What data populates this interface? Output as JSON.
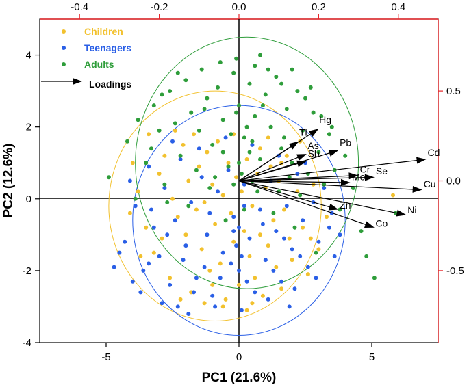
{
  "chart_data": {
    "type": "scatter",
    "title": "",
    "xlabel": "PC1 (21.6%)",
    "ylabel": "PC2 (12.6%)",
    "xlim": [
      -7.5,
      7.5
    ],
    "ylim": [
      -4,
      5
    ],
    "xticks": [
      -5,
      0,
      5
    ],
    "yticks": [
      -4,
      -2,
      0,
      2,
      4
    ],
    "x2lim": [
      -0.5,
      0.5
    ],
    "y2lim": [
      -0.9,
      0.9
    ],
    "x2ticks": [
      "-0.4",
      "-0.2",
      "0.0",
      "0.2",
      "0.4"
    ],
    "y2ticks": [
      "0.5",
      "0.0",
      "-0.5"
    ],
    "legend_position": "top-left",
    "series": [
      {
        "name": "Children",
        "color": "#f2c12e",
        "ellipse": {
          "cx": -0.9,
          "cy": -0.2,
          "rx": 4.0,
          "ry": 3.2
        },
        "points": [
          [
            -3.8,
            0.2
          ],
          [
            -3.5,
            -0.8
          ],
          [
            -3.2,
            -1.5
          ],
          [
            -3.0,
            0.7
          ],
          [
            -2.8,
            1.2
          ],
          [
            -2.6,
            -2.2
          ],
          [
            -2.5,
            0.0
          ],
          [
            -2.3,
            -0.5
          ],
          [
            -2.1,
            1.5
          ],
          [
            -2.0,
            -1.0
          ],
          [
            -1.9,
            0.5
          ],
          [
            -1.8,
            -2.6
          ],
          [
            -1.7,
            1.8
          ],
          [
            -1.6,
            -0.3
          ],
          [
            -1.5,
            0.9
          ],
          [
            -1.4,
            -1.4
          ],
          [
            -1.3,
            -0.1
          ],
          [
            -1.2,
            1.3
          ],
          [
            -1.1,
            -2.0
          ],
          [
            -1.0,
            0.4
          ],
          [
            -0.9,
            -0.7
          ],
          [
            -0.8,
            1.6
          ],
          [
            -0.7,
            -1.8
          ],
          [
            -0.6,
            0.1
          ],
          [
            -0.5,
            -2.8
          ],
          [
            -0.4,
            1.0
          ],
          [
            -0.3,
            -0.4
          ],
          [
            -0.2,
            -1.2
          ],
          [
            -0.1,
            0.6
          ],
          [
            0.0,
            -2.4
          ],
          [
            0.1,
            0.2
          ],
          [
            0.2,
            -0.9
          ],
          [
            0.3,
            1.1
          ],
          [
            0.4,
            -1.6
          ],
          [
            0.5,
            -0.2
          ],
          [
            0.6,
            -2.2
          ],
          [
            0.7,
            0.7
          ],
          [
            0.8,
            -1.0
          ],
          [
            0.9,
            -2.7
          ],
          [
            1.0,
            0.3
          ],
          [
            1.1,
            -1.3
          ],
          [
            1.2,
            0.9
          ],
          [
            1.3,
            -0.6
          ],
          [
            1.4,
            -1.9
          ],
          [
            1.5,
            0.5
          ],
          [
            1.6,
            -2.5
          ],
          [
            1.7,
            -0.3
          ],
          [
            1.8,
            1.2
          ],
          [
            1.9,
            -1.1
          ],
          [
            2.0,
            -1.7
          ],
          [
            2.2,
            0.2
          ],
          [
            2.4,
            -0.8
          ],
          [
            2.6,
            -2.1
          ],
          [
            2.8,
            0.4
          ],
          [
            3.0,
            -1.4
          ],
          [
            3.3,
            -0.5
          ],
          [
            -0.6,
            -3.0
          ],
          [
            -2.4,
            1.9
          ],
          [
            -1.3,
            -2.9
          ],
          [
            0.3,
            -3.1
          ],
          [
            1.1,
            1.7
          ],
          [
            -3.4,
            1.8
          ],
          [
            -4.1,
            -0.4
          ],
          [
            5.8,
            0.1
          ],
          [
            2.3,
            1.6
          ],
          [
            -2.9,
            -1.1
          ],
          [
            -1.0,
            -2.4
          ],
          [
            0.8,
            1.4
          ],
          [
            1.6,
            1.0
          ],
          [
            -0.2,
            1.8
          ],
          [
            2.7,
            -1.1
          ],
          [
            -3.7,
            -1.6
          ],
          [
            -4.0,
            1.0
          ],
          [
            -2.2,
            -2.8
          ],
          [
            0.5,
            -2.9
          ]
        ]
      },
      {
        "name": "Teenagers",
        "color": "#2a5fe6",
        "ellipse": {
          "cx": 0.0,
          "cy": -0.6,
          "rx": 4.0,
          "ry": 3.2
        },
        "points": [
          [
            -4.3,
            -1.2
          ],
          [
            -4.1,
            0.5
          ],
          [
            -3.9,
            -0.2
          ],
          [
            -3.6,
            -2.0
          ],
          [
            -3.4,
            0.9
          ],
          [
            -3.2,
            -0.8
          ],
          [
            -3.0,
            -1.6
          ],
          [
            -2.8,
            0.3
          ],
          [
            -2.6,
            -2.4
          ],
          [
            -2.4,
            -0.6
          ],
          [
            -2.2,
            1.1
          ],
          [
            -2.0,
            -1.3
          ],
          [
            -1.8,
            -0.1
          ],
          [
            -1.6,
            -2.2
          ],
          [
            -1.4,
            0.6
          ],
          [
            -1.2,
            -1.0
          ],
          [
            -1.0,
            -2.7
          ],
          [
            -0.8,
            0.2
          ],
          [
            -0.6,
            -1.5
          ],
          [
            -0.4,
            0.8
          ],
          [
            -0.2,
            -0.5
          ],
          [
            0.0,
            -2.0
          ],
          [
            0.2,
            0.4
          ],
          [
            0.4,
            -1.1
          ],
          [
            0.6,
            -2.6
          ],
          [
            0.8,
            -0.3
          ],
          [
            1.0,
            -1.7
          ],
          [
            1.2,
            0.5
          ],
          [
            1.4,
            -0.9
          ],
          [
            1.6,
            -2.3
          ],
          [
            1.8,
            -0.2
          ],
          [
            2.0,
            -1.4
          ],
          [
            2.2,
            0.7
          ],
          [
            2.4,
            -0.6
          ],
          [
            2.6,
            -1.9
          ],
          [
            2.8,
            -0.1
          ],
          [
            3.0,
            -1.2
          ],
          [
            3.2,
            0.3
          ],
          [
            3.4,
            -0.8
          ],
          [
            3.6,
            -1.6
          ],
          [
            -3.7,
            -2.6
          ],
          [
            -2.9,
            -2.9
          ],
          [
            -1.9,
            -3.2
          ],
          [
            -0.9,
            -3.0
          ],
          [
            0.1,
            -3.1
          ],
          [
            1.1,
            -2.8
          ],
          [
            2.1,
            -2.5
          ],
          [
            -4.5,
            -1.5
          ],
          [
            -2.5,
            1.6
          ],
          [
            -1.5,
            1.4
          ],
          [
            -0.5,
            1.7
          ],
          [
            0.5,
            1.5
          ],
          [
            1.5,
            1.2
          ],
          [
            2.5,
            1.0
          ],
          [
            -0.3,
            -1.8
          ],
          [
            -1.1,
            -0.4
          ],
          [
            0.9,
            -0.7
          ],
          [
            1.7,
            -1.1
          ],
          [
            -2.1,
            -1.7
          ],
          [
            -3.3,
            -0.3
          ],
          [
            0.3,
            -2.3
          ],
          [
            -1.7,
            -2.6
          ],
          [
            2.9,
            -2.2
          ],
          [
            -0.7,
            -2.2
          ],
          [
            1.3,
            -2.0
          ],
          [
            -2.7,
            -1.0
          ],
          [
            3.5,
            -0.4
          ],
          [
            -4.0,
            -2.3
          ],
          [
            0.0,
            -0.8
          ],
          [
            -0.1,
            -1.3
          ],
          [
            0.2,
            -0.2
          ],
          [
            -0.2,
            -0.9
          ],
          [
            0.1,
            -1.6
          ],
          [
            -3.4,
            -1.8
          ],
          [
            -1.3,
            -1.9
          ],
          [
            2.3,
            -1.6
          ],
          [
            3.8,
            -1.0
          ],
          [
            -4.7,
            -1.9
          ],
          [
            -2.3,
            -3.0
          ],
          [
            1.9,
            -3.0
          ]
        ]
      },
      {
        "name": "Adults",
        "color": "#2e9d3a",
        "ellipse": {
          "cx": 0.3,
          "cy": 1.0,
          "rx": 4.2,
          "ry": 3.5
        },
        "points": [
          [
            -4.9,
            0.6
          ],
          [
            -4.2,
            1.6
          ],
          [
            -3.8,
            2.2
          ],
          [
            -3.5,
            1.0
          ],
          [
            -3.2,
            2.6
          ],
          [
            -3.0,
            1.9
          ],
          [
            -2.8,
            0.4
          ],
          [
            -2.6,
            3.0
          ],
          [
            -2.4,
            2.1
          ],
          [
            -2.2,
            1.2
          ],
          [
            -2.0,
            3.3
          ],
          [
            -1.8,
            2.4
          ],
          [
            -1.6,
            0.8
          ],
          [
            -1.4,
            3.6
          ],
          [
            -1.2,
            2.8
          ],
          [
            -1.0,
            1.5
          ],
          [
            -0.8,
            3.1
          ],
          [
            -0.6,
            2.2
          ],
          [
            -0.4,
            0.9
          ],
          [
            -0.2,
            3.5
          ],
          [
            0.0,
            2.6
          ],
          [
            0.2,
            1.7
          ],
          [
            0.4,
            3.2
          ],
          [
            0.6,
            2.3
          ],
          [
            0.8,
            1.1
          ],
          [
            1.0,
            2.9
          ],
          [
            1.2,
            2.0
          ],
          [
            1.4,
            3.4
          ],
          [
            1.6,
            1.4
          ],
          [
            1.8,
            2.5
          ],
          [
            2.0,
            1.0
          ],
          [
            2.2,
            3.0
          ],
          [
            2.4,
            1.9
          ],
          [
            2.6,
            0.7
          ],
          [
            2.8,
            2.4
          ],
          [
            3.0,
            1.3
          ],
          [
            3.2,
            0.4
          ],
          [
            3.4,
            1.8
          ],
          [
            3.6,
            0.8
          ],
          [
            4.0,
            1.2
          ],
          [
            4.3,
            0.3
          ],
          [
            0.8,
            4.0
          ],
          [
            -0.1,
            3.9
          ],
          [
            1.6,
            3.2
          ],
          [
            -1.9,
            -0.2
          ],
          [
            -1.1,
            0.3
          ],
          [
            0.5,
            0.5
          ],
          [
            1.3,
            -0.4
          ],
          [
            2.1,
            -0.8
          ],
          [
            2.9,
            -1.5
          ],
          [
            -0.5,
            -0.6
          ],
          [
            0.2,
            -0.3
          ],
          [
            -2.7,
            -0.1
          ],
          [
            0.6,
            3.7
          ],
          [
            -0.7,
            3.8
          ],
          [
            1.1,
            3.6
          ],
          [
            2.5,
            2.8
          ],
          [
            -2.3,
            3.5
          ],
          [
            -3.3,
            1.4
          ],
          [
            3.8,
            -0.3
          ],
          [
            4.8,
            -1.6
          ],
          [
            5.1,
            -2.2
          ],
          [
            4.6,
            -0.9
          ],
          [
            5.9,
            -0.4
          ],
          [
            0.0,
            1.0
          ],
          [
            0.3,
            2.0
          ],
          [
            -0.3,
            1.8
          ],
          [
            0.1,
            0.7
          ],
          [
            -0.1,
            2.4
          ],
          [
            0.4,
            1.3
          ],
          [
            -0.2,
            0.4
          ],
          [
            0.5,
            1.6
          ],
          [
            1.5,
            0.2
          ],
          [
            1.9,
            0.6
          ],
          [
            2.3,
            0.1
          ],
          [
            -1.5,
            1.9
          ],
          [
            -0.9,
            0.6
          ],
          [
            0.7,
            0.2
          ],
          [
            -3.9,
            0.0
          ],
          [
            3.1,
            2.3
          ],
          [
            2.7,
            3.1
          ],
          [
            -1.3,
            2.5
          ],
          [
            0.9,
            2.6
          ],
          [
            1.7,
            1.7
          ],
          [
            -0.6,
            1.3
          ],
          [
            2.0,
            3.6
          ],
          [
            3.5,
            2.0
          ],
          [
            -2.9,
            2.9
          ]
        ]
      }
    ],
    "loadings": {
      "scale_label": "Loadings",
      "vectors": [
        {
          "label": "Hg",
          "x": 0.2,
          "y": 0.29
        },
        {
          "label": "Tl",
          "x": 0.15,
          "y": 0.22
        },
        {
          "label": "As",
          "x": 0.17,
          "y": 0.15
        },
        {
          "label": "Pb",
          "x": 0.25,
          "y": 0.17
        },
        {
          "label": "Sb",
          "x": 0.17,
          "y": 0.11
        },
        {
          "label": "Cd",
          "x": 0.47,
          "y": 0.12
        },
        {
          "label": "Cr",
          "x": 0.3,
          "y": 0.03
        },
        {
          "label": "Se",
          "x": 0.34,
          "y": 0.02
        },
        {
          "label": "Mo",
          "x": 0.28,
          "y": -0.01
        },
        {
          "label": "Cu",
          "x": 0.46,
          "y": -0.05
        },
        {
          "label": "Zn",
          "x": 0.25,
          "y": -0.16
        },
        {
          "label": "Ni",
          "x": 0.42,
          "y": -0.19
        },
        {
          "label": "Co",
          "x": 0.34,
          "y": -0.26
        }
      ]
    }
  }
}
